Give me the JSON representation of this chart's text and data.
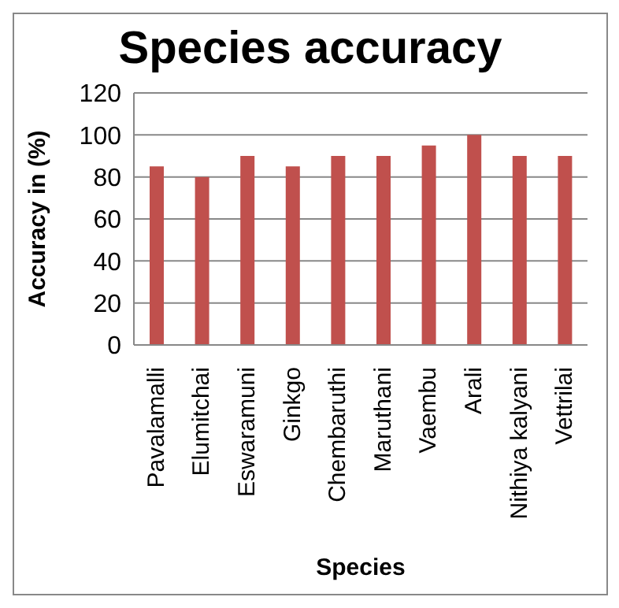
{
  "chart_data": {
    "type": "bar",
    "title": "Species accuracy",
    "xlabel": "Species",
    "ylabel": "Accuracy in (%)",
    "categories": [
      "Pavalamalli",
      "Elumitchai",
      "Eswaramuni",
      "Ginkgo",
      "Chembaruthi",
      "Maruthani",
      "Vaembu",
      "Arali",
      "Nithiya kalyani",
      "Vettrilai"
    ],
    "values": [
      85,
      80,
      90,
      85,
      90,
      90,
      95,
      100,
      90,
      90
    ],
    "color": "#c0504d",
    "ylim": [
      0,
      120
    ],
    "yticks": [
      0,
      20,
      40,
      60,
      80,
      100,
      120
    ],
    "grid": "y",
    "legend": false
  }
}
